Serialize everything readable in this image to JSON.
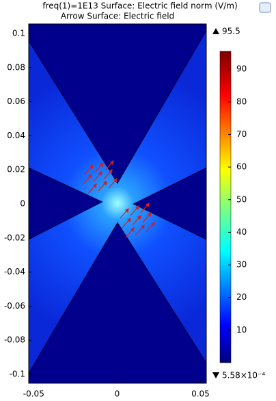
{
  "chart_data": {
    "type": "surface",
    "title": "freq(1)=1E13   Surface: Electric field norm (V/m)",
    "subtitle": "Arrow Surface: Electric field",
    "xlim": [
      -0.053,
      0.0535
    ],
    "xticks": [
      -0.05,
      0,
      0.05
    ],
    "ylim": [
      -0.1052,
      0.1056
    ],
    "yticks": [
      0.1,
      0.08,
      0.06,
      0.04,
      0.02,
      0,
      -0.02,
      -0.04,
      -0.06,
      -0.08,
      -0.1
    ],
    "colorbar": {
      "lim": [
        0.000558,
        95.5
      ],
      "ticks": [
        10,
        20,
        30,
        40,
        50,
        60,
        70,
        80,
        90
      ],
      "max": 95.5,
      "min": {
        "value": 0.000558,
        "label": "5.58×10⁻⁴"
      }
    }
  }
}
